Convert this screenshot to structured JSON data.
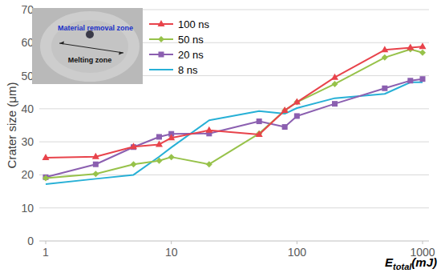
{
  "chart_data": {
    "type": "line",
    "x_label": "Etotal(mJ)",
    "y_label": "Crater size (μm)",
    "annotations": [
      "Material removal zone",
      "Melting zone"
    ],
    "log": "x",
    "grid": true,
    "legend": "upper left",
    "x": [
      1,
      2.5,
      5,
      8,
      10,
      20,
      50,
      80,
      100,
      200,
      500,
      800,
      1000
    ],
    "xlim": [
      1,
      1000
    ],
    "xticks": [
      1,
      10,
      100,
      1000
    ],
    "ylim": [
      0,
      70
    ],
    "yticks": [
      0,
      10,
      20,
      30,
      40,
      50,
      60,
      70
    ],
    "series": [
      {
        "name": "100 ns",
        "color": "#e8434b",
        "marker": "triangle",
        "values": [
          25.2,
          25.5,
          28.5,
          29.2,
          31.2,
          33.5,
          32.2,
          39.5,
          42,
          49.5,
          57.8,
          58.5,
          58.8
        ]
      },
      {
        "name": "50 ns",
        "color": "#97c24a",
        "marker": "diamond",
        "values": [
          19,
          20.3,
          23.2,
          24.3,
          25.4,
          23.2,
          32.5,
          39.5,
          42,
          47.5,
          55.5,
          58,
          57
        ]
      },
      {
        "name": "20 ns",
        "color": "#8b5fb0",
        "marker": "square",
        "values": [
          19.3,
          23.2,
          28.4,
          31.5,
          32.4,
          32.5,
          36.2,
          34.5,
          37.8,
          41.5,
          46.2,
          48.5,
          49
        ]
      },
      {
        "name": "8 ns",
        "color": "#27b0d6",
        "marker": "none",
        "values": [
          17.2,
          18.8,
          20,
          25.5,
          28.3,
          36.5,
          39.3,
          38.5,
          40.2,
          43.2,
          44.5,
          48,
          48
        ]
      }
    ]
  }
}
